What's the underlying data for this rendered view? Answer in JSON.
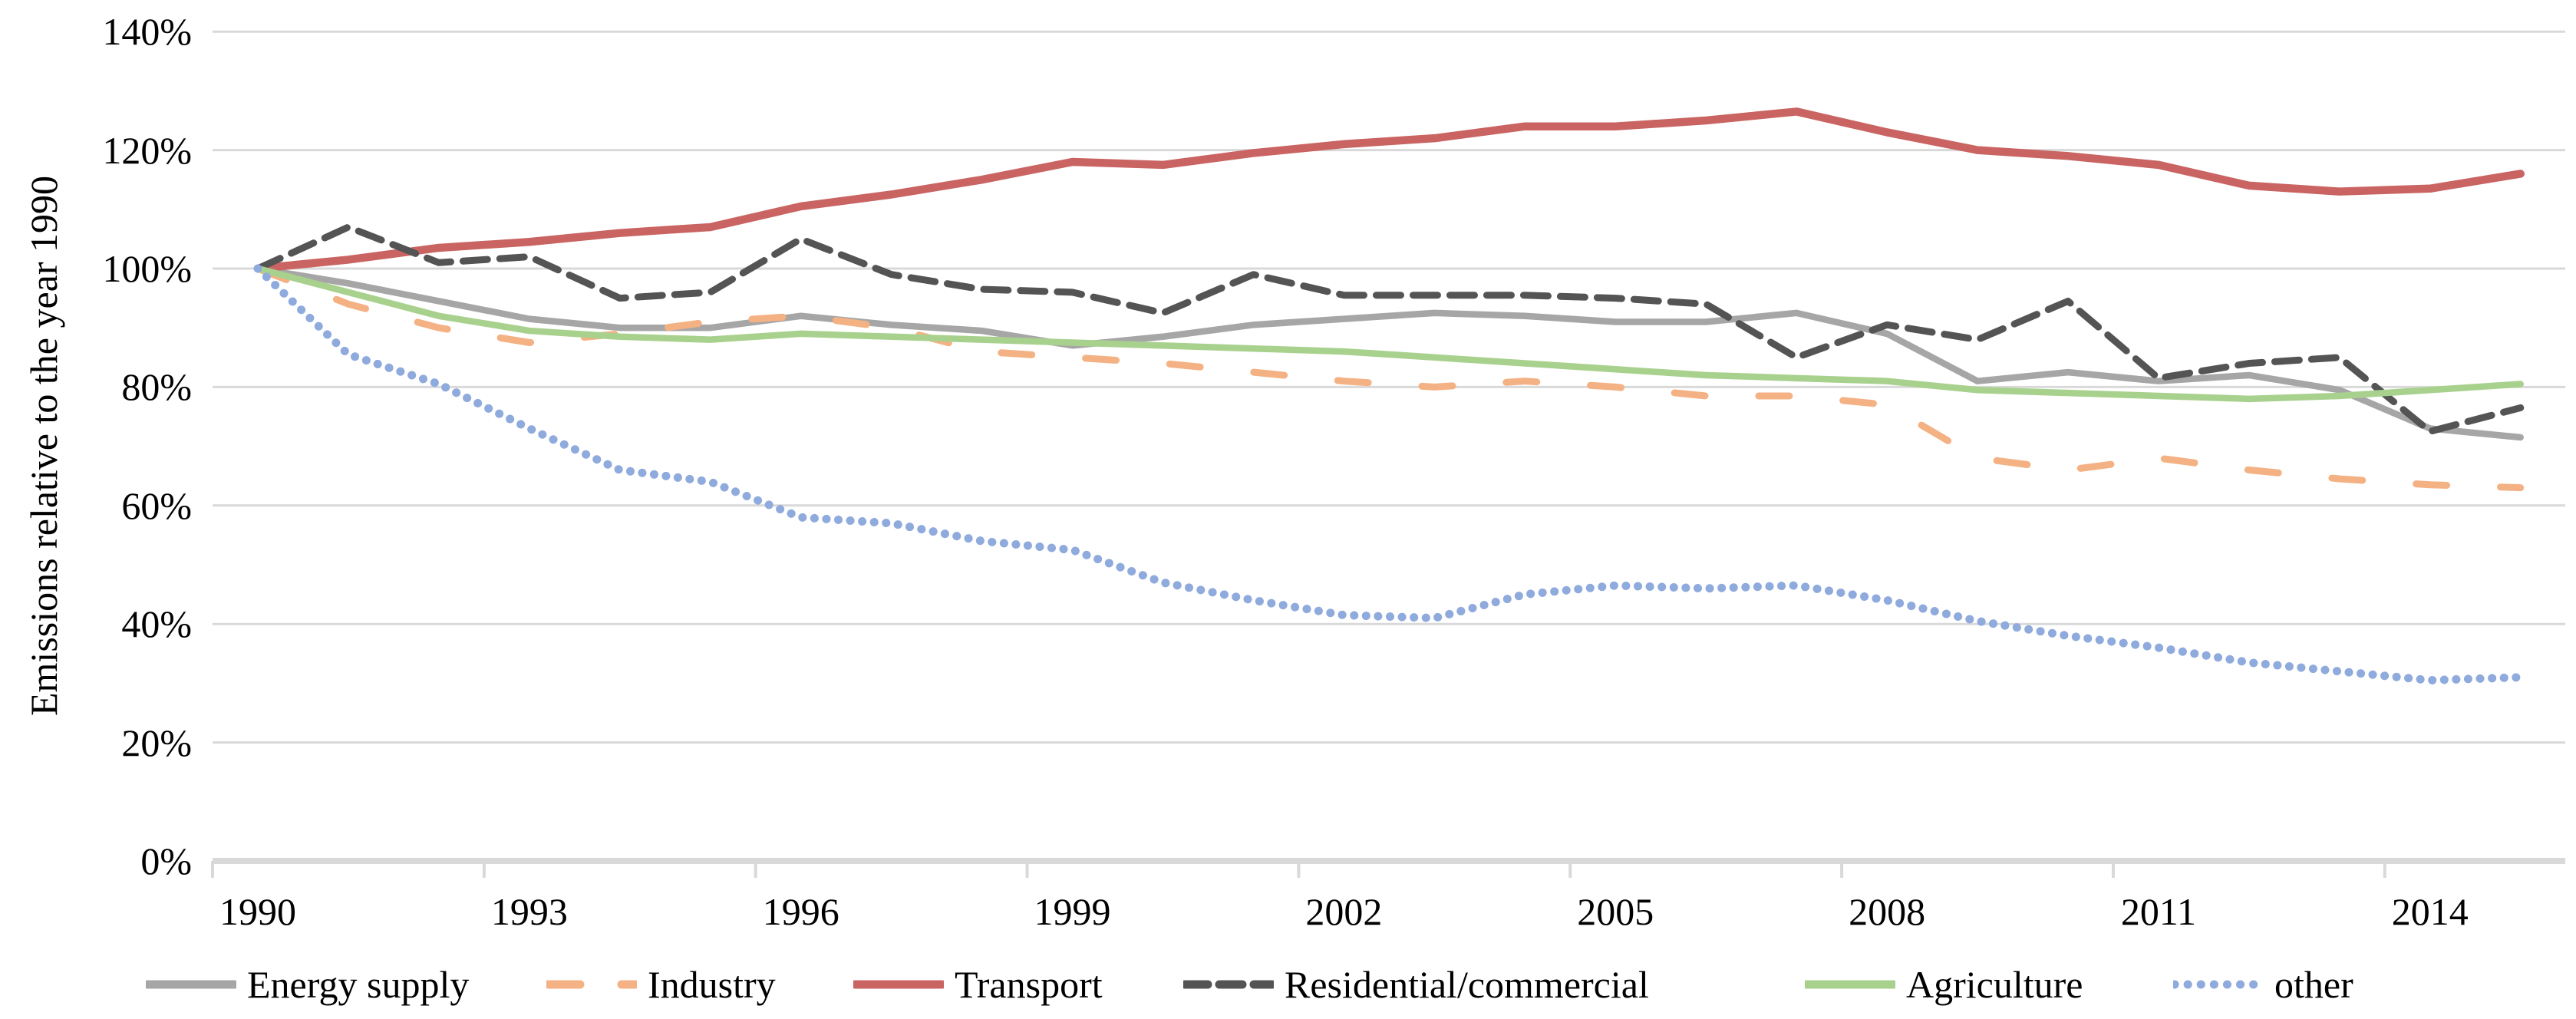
{
  "y_axis": {
    "title": "Emissions relative to the year 1990",
    "tick_labels": [
      "0%",
      "20%",
      "40%",
      "60%",
      "80%",
      "100%",
      "120%",
      "140%"
    ]
  },
  "x_axis": {
    "tick_labels": [
      "1990",
      "1993",
      "1996",
      "1999",
      "2002",
      "2005",
      "2008",
      "2011",
      "2014"
    ]
  },
  "colors": {
    "gridline": "#D9D9D9",
    "axis": "#D9D9D9",
    "text": "#000000"
  },
  "chart_data": {
    "type": "line",
    "x": [
      1990,
      1991,
      1992,
      1993,
      1994,
      1995,
      1996,
      1997,
      1998,
      1999,
      2000,
      2001,
      2002,
      2003,
      2004,
      2005,
      2006,
      2007,
      2008,
      2009,
      2010,
      2011,
      2012,
      2013,
      2014,
      2015
    ],
    "ylim": [
      0,
      140
    ],
    "grid": true,
    "legend_position": "bottom",
    "xlabel": "",
    "ylabel": "Emissions relative to the year 1990",
    "title": "",
    "series": [
      {
        "name": "Energy supply",
        "color": "#A6A6A6",
        "style": "solid",
        "values": [
          100,
          97.5,
          94.5,
          91.5,
          90,
          90,
          92,
          90.5,
          89.5,
          87,
          88.5,
          90.5,
          91.5,
          92.5,
          92,
          91,
          91,
          92.5,
          89,
          81,
          82.5,
          81,
          82,
          79.5,
          73,
          71.5
        ]
      },
      {
        "name": "Industry",
        "color": "#F4B183",
        "style": "long-dash",
        "values": [
          100,
          94,
          90,
          87.5,
          89,
          91,
          92,
          90,
          86,
          85,
          84,
          82.5,
          81,
          80,
          81,
          80,
          78.5,
          78.5,
          77,
          68,
          66,
          68,
          66,
          64.5,
          63.5,
          63
        ]
      },
      {
        "name": "Transport",
        "color": "#C96462",
        "style": "solid-thick",
        "values": [
          100,
          101.5,
          103.5,
          104.5,
          106,
          107,
          110.5,
          112.5,
          115,
          118,
          117.5,
          119.5,
          121,
          122,
          124,
          124,
          125,
          126.5,
          123,
          120,
          119,
          117.5,
          114,
          113,
          113.5,
          116
        ]
      },
      {
        "name": "Residential/commercial",
        "color": "#545454",
        "style": "dash",
        "values": [
          100,
          107,
          101,
          102,
          95,
          96,
          105,
          99,
          96.5,
          96,
          92.5,
          99,
          95.5,
          95.5,
          95.5,
          95,
          94,
          85,
          90.5,
          88,
          94.5,
          81.5,
          84,
          85,
          72.5,
          76.5
        ]
      },
      {
        "name": "Agriculture",
        "color": "#A9D18E",
        "style": "solid",
        "values": [
          100,
          96,
          92,
          89.5,
          88.5,
          88,
          89,
          88.5,
          88,
          87.5,
          87,
          86.5,
          86,
          85,
          84,
          83,
          82,
          81.5,
          81,
          79.5,
          79,
          78.5,
          78,
          78.5,
          79.5,
          80.5
        ]
      },
      {
        "name": "other",
        "color": "#8FAADC",
        "style": "dot",
        "values": [
          100,
          85.5,
          80.5,
          73,
          66,
          64,
          58,
          57,
          54,
          52.5,
          47,
          44,
          41.5,
          41,
          45,
          46.5,
          46,
          46.5,
          44,
          40.5,
          38,
          36,
          33.5,
          32,
          30.5,
          31
        ]
      }
    ]
  }
}
